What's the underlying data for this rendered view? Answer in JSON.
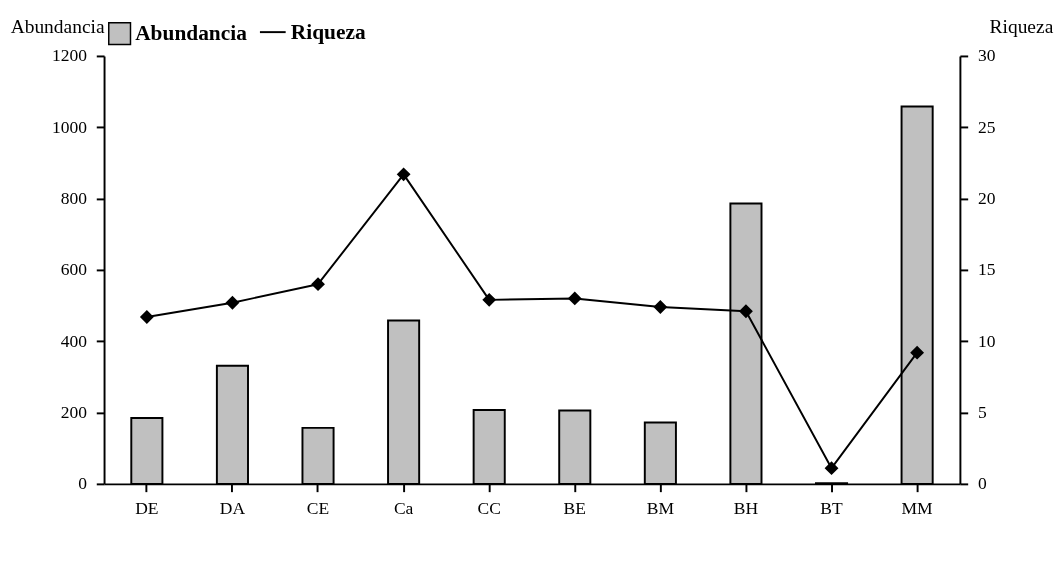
{
  "chart_data": {
    "type": "bar",
    "categories": [
      "DE",
      "DA",
      "CE",
      "Ca",
      "CC",
      "BE",
      "BM",
      "BH",
      "BT",
      "MM"
    ],
    "ylabel": "Abundancia",
    "y2label": "Riqueza",
    "series": [
      {
        "name": "Abundancia",
        "color": "#c0c0c0",
        "values": [
          185,
          331,
          157,
          458,
          207,
          206,
          172,
          786,
          2,
          1058
        ]
      },
      {
        "name": "Riqueza",
        "type": "line",
        "axis": "y2",
        "color": "#000000",
        "marker": "diamond",
        "values": [
          11.7,
          12.7,
          14.0,
          21.7,
          12.9,
          13.0,
          12.4,
          12.1,
          1.1,
          9.2
        ]
      }
    ],
    "ylim": [
      0,
      1200
    ],
    "yticks": [
      0,
      200,
      400,
      600,
      800,
      1000,
      1200
    ],
    "y2lim": [
      0,
      30
    ],
    "y2ticks": [
      0,
      5,
      10,
      15,
      20,
      25,
      30
    ],
    "grid": false,
    "legend": "top"
  }
}
